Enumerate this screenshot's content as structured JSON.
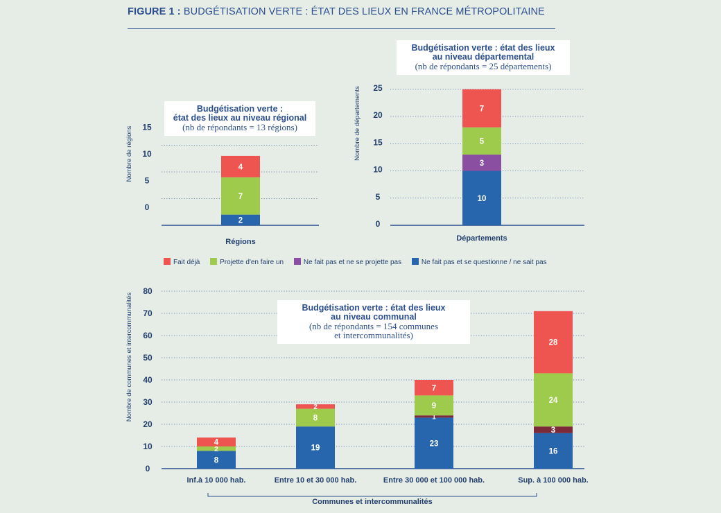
{
  "figure": {
    "prefix": "FIGURE 1 :",
    "title": "BUDGÉTISATION VERTE : ÉTAT DES LIEUX EN FRANCE MÉTROPOLITAINE"
  },
  "colors": {
    "fait_deja": "#ef5550",
    "projette": "#9fcb4c",
    "ne_fait_pas_ne_projette_pas": "#8b4fa2",
    "ne_fait_pas_questionne": "#2766ad",
    "dark_red_communal": "#7b2a3a",
    "axis_text": "#23406f",
    "grid": "#2c4f8e"
  },
  "boxes": {
    "regional": {
      "line1": "Budgétisation verte :",
      "line2": "état des lieux au niveau régional",
      "line3": "(nb de répondants = 13 régions)"
    },
    "departemental": {
      "line1": "Budgétisation verte : état des lieux",
      "line2": "au niveau départemental",
      "line3": "(nb de répondants = 25 départements)"
    },
    "communal": {
      "line1": "Budgétisation verte : état des lieux",
      "line2": "au niveau communal",
      "line3": "(nb de répondants = 154 communes",
      "line4": "et intercommunalités)"
    }
  },
  "legend": {
    "fait_deja": "Fait déjà",
    "projette": "Projette d'en faire un",
    "ne_projette_pas": "Ne fait pas et ne se projette pas",
    "questionne": "Ne fait pas et se questionne / ne sait pas"
  },
  "bottom_label": "Communes et intercommunalités",
  "chart_data": [
    {
      "type": "bar",
      "stacked": true,
      "ylabel": "Nombre de régions",
      "yticks": [
        0,
        5,
        10,
        15
      ],
      "ylim": [
        0,
        15
      ],
      "categories": [
        "Régions"
      ],
      "series": [
        {
          "name": "Ne fait pas et se questionne / ne sait pas",
          "values": [
            2
          ],
          "color": "#2766ad"
        },
        {
          "name": "Projette d'en faire un",
          "values": [
            7
          ],
          "color": "#9fcb4c"
        },
        {
          "name": "Fait déjà",
          "values": [
            4
          ],
          "color": "#ef5550"
        }
      ]
    },
    {
      "type": "bar",
      "stacked": true,
      "ylabel": "Nombre de départements",
      "yticks": [
        0,
        5,
        10,
        15,
        20,
        25
      ],
      "ylim": [
        0,
        25
      ],
      "categories": [
        "Départements"
      ],
      "series": [
        {
          "name": "Ne fait pas et se questionne / ne sait pas",
          "values": [
            10
          ],
          "color": "#2766ad"
        },
        {
          "name": "Ne fait pas et ne se projette pas",
          "values": [
            3
          ],
          "color": "#8b4fa2"
        },
        {
          "name": "Projette d'en faire un",
          "values": [
            5
          ],
          "color": "#9fcb4c"
        },
        {
          "name": "Fait déjà",
          "values": [
            7
          ],
          "color": "#ef5550"
        }
      ]
    },
    {
      "type": "bar",
      "stacked": true,
      "ylabel": "Nombre de communes et intercommunalités",
      "yticks": [
        0,
        10,
        20,
        30,
        40,
        50,
        60,
        70,
        80
      ],
      "ylim": [
        0,
        80
      ],
      "categories": [
        "Inf.à 10 000 hab.",
        "Entre 10 et 30 000 hab.",
        "Entre 30 000 et 100 000 hab.",
        "Sup. à 100 000 hab."
      ],
      "series": [
        {
          "name": "Ne fait pas et se questionne / ne sait pas",
          "values": [
            8,
            19,
            23,
            16
          ],
          "color": "#2766ad"
        },
        {
          "name": "Ne fait pas et ne se projette pas",
          "values": [
            0,
            0,
            1,
            3
          ],
          "color": "#7b2a3a"
        },
        {
          "name": "Projette d'en faire un",
          "values": [
            2,
            8,
            9,
            24
          ],
          "color": "#9fcb4c"
        },
        {
          "name": "Fait déjà",
          "values": [
            4,
            2,
            7,
            28
          ],
          "color": "#ef5550"
        }
      ]
    }
  ]
}
